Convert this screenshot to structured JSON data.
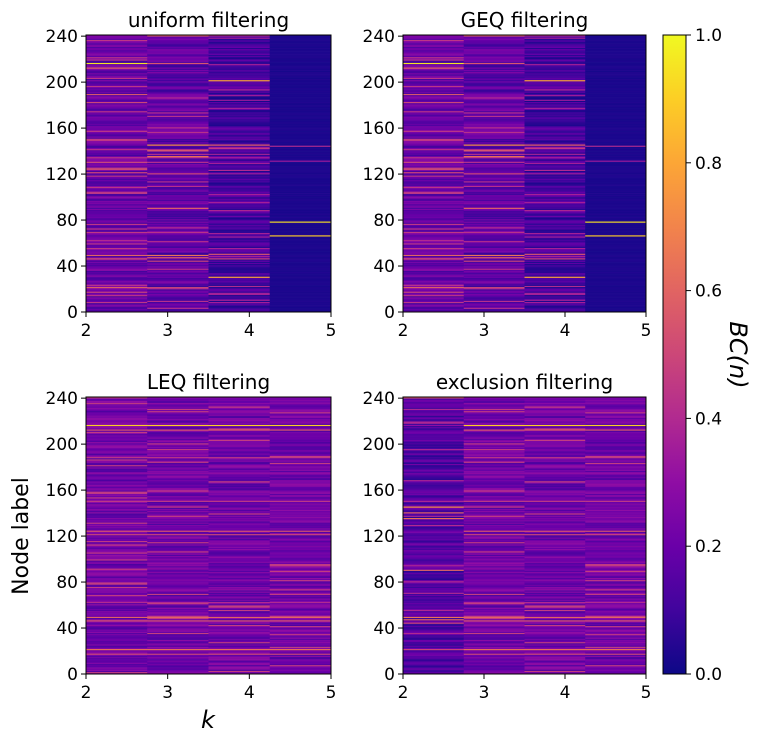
{
  "chart_data": {
    "type": "heatmap",
    "colormap": "plasma",
    "value_range": [
      0.0,
      1.0
    ],
    "x_ticks": [
      2,
      3,
      4,
      5
    ],
    "y_ticks": [
      0,
      40,
      80,
      120,
      160,
      200,
      240
    ],
    "node_count": 241,
    "k_values": [
      2,
      3,
      4,
      5
    ],
    "ylabel": "Node label",
    "xlabel": "k",
    "colorbar": {
      "label": "BC(n)",
      "ticks": [
        "0.0",
        "0.2",
        "0.4",
        "0.6",
        "0.8",
        "1.0"
      ]
    },
    "panels": [
      {
        "title": "uniform filtering",
        "columns": [
          {
            "k": 2,
            "base": 0.2,
            "bright_nodes": [
              [
                216,
                0.95
              ],
              [
                212,
                0.6
              ],
              [
                189,
                0.55
              ],
              [
                182,
                0.5
              ],
              [
                150,
                0.45
              ],
              [
                130,
                0.5
              ],
              [
                124,
                0.55
              ],
              [
                121,
                0.5
              ],
              [
                62,
                0.4
              ],
              [
                49,
                0.6
              ],
              [
                46,
                0.55
              ],
              [
                21,
                0.6
              ],
              [
                17,
                0.5
              ]
            ]
          },
          {
            "k": 3,
            "base": 0.18,
            "bright_nodes": [
              [
                240,
                0.6
              ],
              [
                216,
                0.55
              ],
              [
                186,
                0.4
              ],
              [
                145,
                0.75
              ],
              [
                140,
                0.6
              ],
              [
                135,
                0.65
              ],
              [
                120,
                0.5
              ],
              [
                90,
                0.6
              ],
              [
                49,
                0.65
              ],
              [
                47,
                0.6
              ],
              [
                44,
                0.5
              ],
              [
                21,
                0.5
              ],
              [
                20,
                0.4
              ]
            ]
          },
          {
            "k": 4,
            "base": 0.12,
            "bright_nodes": [
              [
                240,
                0.4
              ],
              [
                201,
                0.8
              ],
              [
                193,
                0.4
              ],
              [
                184,
                0.35
              ],
              [
                145,
                0.6
              ],
              [
                142,
                0.45
              ],
              [
                123,
                0.4
              ],
              [
                88,
                0.4
              ],
              [
                50,
                0.55
              ],
              [
                46,
                0.5
              ],
              [
                30,
                0.8
              ],
              [
                22,
                0.4
              ]
            ]
          },
          {
            "k": 5,
            "base": 0.02,
            "bright_nodes": [
              [
                144,
                0.4
              ],
              [
                131,
                0.35
              ],
              [
                78,
                0.95
              ],
              [
                66,
                0.9
              ]
            ]
          }
        ]
      },
      {
        "title": "GEQ filtering",
        "columns": [
          {
            "k": 2,
            "base": 0.2,
            "bright_nodes": [
              [
                216,
                0.95
              ],
              [
                212,
                0.6
              ],
              [
                189,
                0.55
              ],
              [
                182,
                0.5
              ],
              [
                150,
                0.45
              ],
              [
                130,
                0.5
              ],
              [
                124,
                0.55
              ],
              [
                121,
                0.5
              ],
              [
                62,
                0.4
              ],
              [
                49,
                0.6
              ],
              [
                46,
                0.55
              ],
              [
                21,
                0.6
              ],
              [
                17,
                0.5
              ]
            ]
          },
          {
            "k": 3,
            "base": 0.18,
            "bright_nodes": [
              [
                240,
                0.6
              ],
              [
                216,
                0.55
              ],
              [
                186,
                0.4
              ],
              [
                145,
                0.75
              ],
              [
                140,
                0.6
              ],
              [
                135,
                0.65
              ],
              [
                120,
                0.5
              ],
              [
                90,
                0.6
              ],
              [
                49,
                0.65
              ],
              [
                47,
                0.6
              ],
              [
                44,
                0.5
              ],
              [
                21,
                0.5
              ],
              [
                20,
                0.4
              ]
            ]
          },
          {
            "k": 4,
            "base": 0.12,
            "bright_nodes": [
              [
                240,
                0.4
              ],
              [
                201,
                0.8
              ],
              [
                193,
                0.4
              ],
              [
                184,
                0.35
              ],
              [
                145,
                0.6
              ],
              [
                142,
                0.45
              ],
              [
                123,
                0.4
              ],
              [
                88,
                0.4
              ],
              [
                50,
                0.55
              ],
              [
                46,
                0.5
              ],
              [
                30,
                0.8
              ],
              [
                22,
                0.4
              ]
            ]
          },
          {
            "k": 5,
            "base": 0.02,
            "bright_nodes": [
              [
                144,
                0.4
              ],
              [
                131,
                0.35
              ],
              [
                78,
                0.95
              ],
              [
                66,
                0.9
              ]
            ]
          }
        ]
      },
      {
        "title": "LEQ filtering",
        "columns": [
          {
            "k": 2,
            "base": 0.22,
            "bright_nodes": [
              [
                216,
                0.9
              ],
              [
                212,
                0.55
              ],
              [
                188,
                0.45
              ],
              [
                150,
                0.45
              ],
              [
                124,
                0.55
              ],
              [
                121,
                0.5
              ],
              [
                62,
                0.4
              ],
              [
                49,
                0.6
              ],
              [
                46,
                0.55
              ],
              [
                21,
                0.65
              ],
              [
                17,
                0.5
              ]
            ]
          },
          {
            "k": 3,
            "base": 0.22,
            "bright_nodes": [
              [
                216,
                0.9
              ],
              [
                212,
                0.55
              ],
              [
                188,
                0.45
              ],
              [
                150,
                0.45
              ],
              [
                124,
                0.55
              ],
              [
                121,
                0.5
              ],
              [
                62,
                0.4
              ],
              [
                49,
                0.6
              ],
              [
                46,
                0.55
              ],
              [
                21,
                0.65
              ],
              [
                17,
                0.5
              ]
            ]
          },
          {
            "k": 4,
            "base": 0.22,
            "bright_nodes": [
              [
                216,
                0.9
              ],
              [
                212,
                0.55
              ],
              [
                188,
                0.45
              ],
              [
                150,
                0.45
              ],
              [
                124,
                0.55
              ],
              [
                121,
                0.5
              ],
              [
                62,
                0.4
              ],
              [
                49,
                0.6
              ],
              [
                46,
                0.55
              ],
              [
                21,
                0.65
              ],
              [
                17,
                0.5
              ]
            ]
          },
          {
            "k": 5,
            "base": 0.22,
            "bright_nodes": [
              [
                216,
                0.9
              ],
              [
                212,
                0.55
              ],
              [
                188,
                0.45
              ],
              [
                150,
                0.45
              ],
              [
                124,
                0.55
              ],
              [
                121,
                0.5
              ],
              [
                62,
                0.4
              ],
              [
                49,
                0.6
              ],
              [
                46,
                0.55
              ],
              [
                21,
                0.65
              ],
              [
                17,
                0.5
              ]
            ]
          }
        ]
      },
      {
        "title": "exclusion filtering",
        "columns": [
          {
            "k": 2,
            "base": 0.15,
            "bright_nodes": [
              [
                240,
                0.55
              ],
              [
                216,
                0.3
              ],
              [
                145,
                0.75
              ],
              [
                140,
                0.6
              ],
              [
                135,
                0.65
              ],
              [
                90,
                0.6
              ],
              [
                49,
                0.65
              ],
              [
                47,
                0.6
              ],
              [
                44,
                0.5
              ],
              [
                21,
                0.5
              ]
            ]
          },
          {
            "k": 3,
            "base": 0.22,
            "bright_nodes": [
              [
                216,
                0.9
              ],
              [
                212,
                0.55
              ],
              [
                188,
                0.45
              ],
              [
                150,
                0.45
              ],
              [
                124,
                0.55
              ],
              [
                121,
                0.5
              ],
              [
                62,
                0.4
              ],
              [
                49,
                0.6
              ],
              [
                46,
                0.55
              ],
              [
                21,
                0.65
              ],
              [
                17,
                0.5
              ]
            ]
          },
          {
            "k": 4,
            "base": 0.22,
            "bright_nodes": [
              [
                216,
                0.9
              ],
              [
                212,
                0.55
              ],
              [
                188,
                0.45
              ],
              [
                150,
                0.45
              ],
              [
                124,
                0.55
              ],
              [
                121,
                0.5
              ],
              [
                62,
                0.4
              ],
              [
                49,
                0.6
              ],
              [
                46,
                0.55
              ],
              [
                21,
                0.65
              ],
              [
                17,
                0.5
              ]
            ]
          },
          {
            "k": 5,
            "base": 0.22,
            "bright_nodes": [
              [
                216,
                0.9
              ],
              [
                212,
                0.55
              ],
              [
                188,
                0.45
              ],
              [
                150,
                0.45
              ],
              [
                124,
                0.55
              ],
              [
                121,
                0.5
              ],
              [
                62,
                0.4
              ],
              [
                49,
                0.6
              ],
              [
                46,
                0.55
              ],
              [
                21,
                0.65
              ],
              [
                17,
                0.5
              ]
            ]
          }
        ]
      }
    ]
  }
}
